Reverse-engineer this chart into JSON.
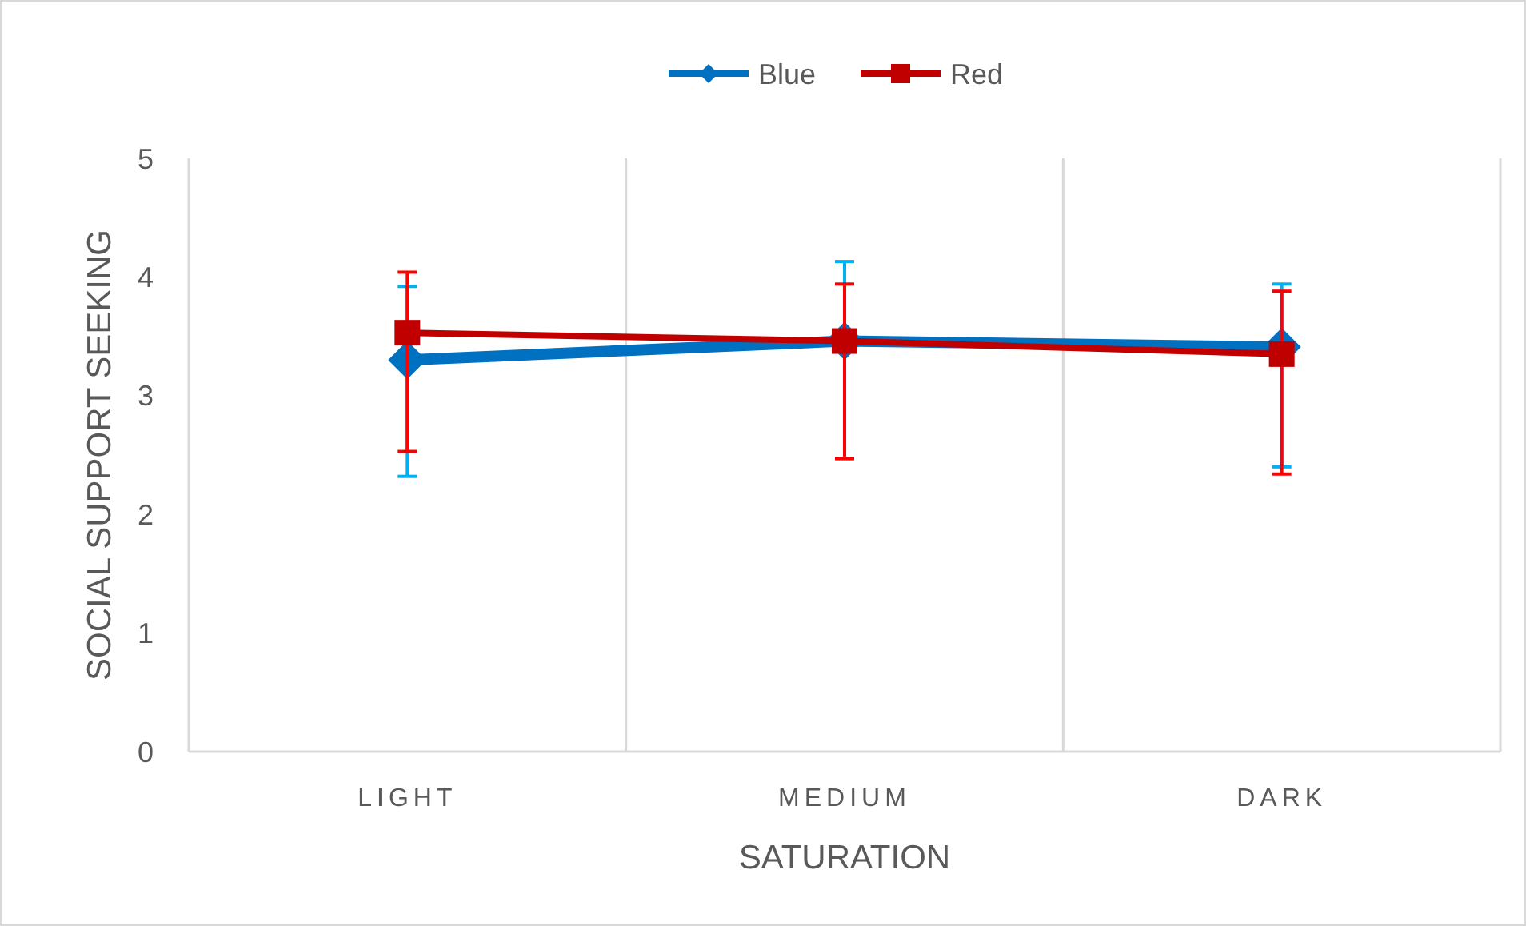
{
  "chart_data": {
    "type": "line",
    "xlabel": "SATURATION",
    "ylabel": "SOCIAL SUPPORT SEEKING",
    "categories": [
      "LIGHT",
      "MEDIUM",
      "DARK"
    ],
    "series": [
      {
        "name": "Blue",
        "color": "#0070c0",
        "marker": "diamond",
        "values": [
          3.3,
          3.46,
          3.41
        ],
        "errors": [
          [
            2.32,
            3.92
          ],
          [
            2.47,
            4.13
          ],
          [
            2.4,
            3.94
          ]
        ]
      },
      {
        "name": "Red",
        "color": "#c00000",
        "marker": "square",
        "values": [
          3.53,
          3.46,
          3.35
        ],
        "errors": [
          [
            2.53,
            4.04
          ],
          [
            2.47,
            3.94
          ],
          [
            2.34,
            3.88
          ]
        ]
      }
    ],
    "ylim": [
      0,
      5
    ],
    "yticks": [
      0,
      1,
      2,
      3,
      4,
      5
    ],
    "grid": false,
    "legend": "top",
    "line_style": "solid"
  }
}
